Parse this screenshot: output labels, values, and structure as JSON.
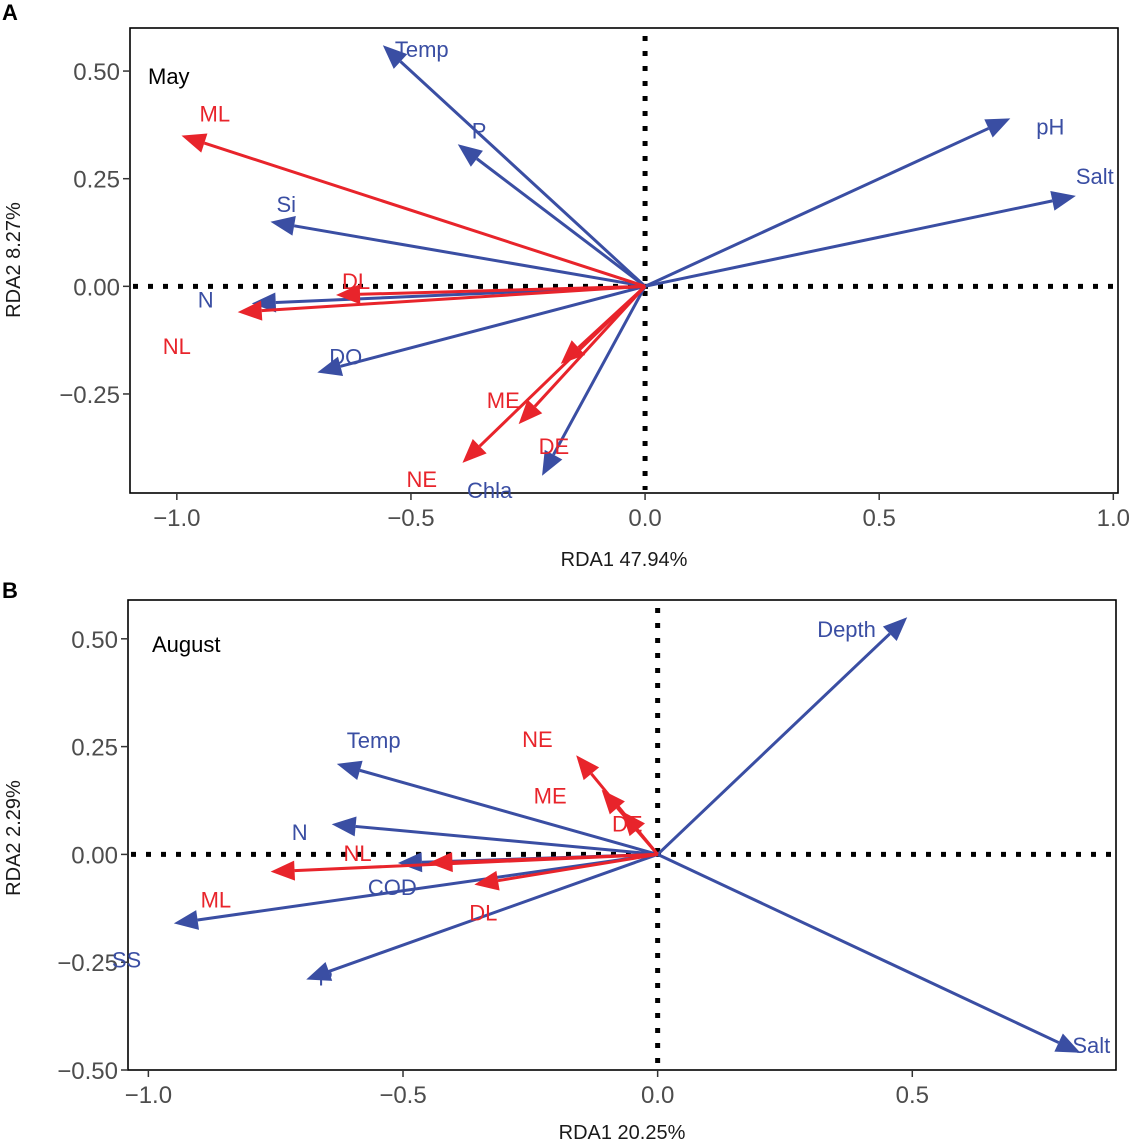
{
  "colors": {
    "env": "#3a4ea3",
    "group": "#e8242b",
    "frame": "#000000"
  },
  "chart_data": [
    {
      "type": "scatter",
      "panel_label": "A",
      "annotation": "May",
      "xlabel": "RDA1 47.94%",
      "ylabel": "RDA2 8.27%",
      "xlim": [
        -1.1,
        1.01
      ],
      "ylim": [
        -0.48,
        0.6
      ],
      "xticks": [
        -1.0,
        -0.5,
        0.0,
        0.5,
        1.0
      ],
      "xtick_labels": [
        "−1.0",
        "−0.5",
        "0.0",
        "0.5",
        "1.0"
      ],
      "yticks": [
        -0.25,
        0.0,
        0.25,
        0.5
      ],
      "ytick_labels": [
        "−0.25",
        "0.00",
        "0.25",
        "0.50"
      ],
      "series": [
        {
          "name": "environment",
          "color": "#3a4ea3",
          "vectors": [
            {
              "label": "Temp",
              "x": -0.56,
              "y": 0.56
            },
            {
              "label": "P",
              "x": -0.4,
              "y": 0.33
            },
            {
              "label": "pH",
              "x": 0.78,
              "y": 0.39
            },
            {
              "label": "Salt",
              "x": 0.92,
              "y": 0.21
            },
            {
              "label": "Si",
              "x": -0.8,
              "y": 0.15
            },
            {
              "label": "N",
              "x": -0.84,
              "y": -0.04
            },
            {
              "label": "DO",
              "x": -0.7,
              "y": -0.2
            },
            {
              "label": "Chla",
              "x": -0.22,
              "y": -0.44
            }
          ]
        },
        {
          "name": "groups",
          "color": "#e8242b",
          "vectors": [
            {
              "label": "ML",
              "x": -0.99,
              "y": 0.35
            },
            {
              "label": "DL",
              "x": -0.66,
              "y": -0.02
            },
            {
              "label": "NL",
              "x": -0.87,
              "y": -0.06
            },
            {
              "label": "ME",
              "x": -0.18,
              "y": -0.18
            },
            {
              "label": "DE",
              "x": -0.27,
              "y": -0.32
            },
            {
              "label": "NE",
              "x": -0.39,
              "y": -0.41
            }
          ]
        }
      ]
    },
    {
      "type": "scatter",
      "panel_label": "B",
      "annotation": "August",
      "xlabel": "RDA1 20.25%",
      "ylabel": "RDA2 2.29%",
      "xlim": [
        -1.04,
        0.9
      ],
      "ylim": [
        -0.5,
        0.59
      ],
      "xticks": [
        -1.0,
        -0.5,
        0.0,
        0.5
      ],
      "xtick_labels": [
        "−1.0",
        "−0.5",
        "0.0",
        "0.5"
      ],
      "yticks": [
        -0.5,
        -0.25,
        0.0,
        0.25,
        0.5
      ],
      "ytick_labels": [
        "−0.50",
        "−0.25",
        "0.00",
        "0.25",
        "0.50"
      ],
      "series": [
        {
          "name": "environment",
          "color": "#3a4ea3",
          "vectors": [
            {
              "label": "Depth",
              "x": 0.49,
              "y": 0.55
            },
            {
              "label": "Temp",
              "x": -0.63,
              "y": 0.21
            },
            {
              "label": "N",
              "x": -0.64,
              "y": 0.07
            },
            {
              "label": "COD",
              "x": -0.51,
              "y": -0.02
            },
            {
              "label": "SS",
              "x": -0.95,
              "y": -0.16
            },
            {
              "label": "P",
              "x": -0.69,
              "y": -0.29
            },
            {
              "label": "Salt",
              "x": 0.83,
              "y": -0.46
            }
          ]
        },
        {
          "name": "groups",
          "color": "#e8242b",
          "vectors": [
            {
              "label": "NE",
              "x": -0.16,
              "y": 0.23
            },
            {
              "label": "ME",
              "x": -0.11,
              "y": 0.15
            },
            {
              "label": "DE",
              "x": -0.07,
              "y": 0.1
            },
            {
              "label": "NL",
              "x": -0.45,
              "y": -0.02
            },
            {
              "label": "ML",
              "x": -0.76,
              "y": -0.04
            },
            {
              "label": "DL",
              "x": -0.36,
              "y": -0.07
            }
          ]
        }
      ]
    }
  ]
}
